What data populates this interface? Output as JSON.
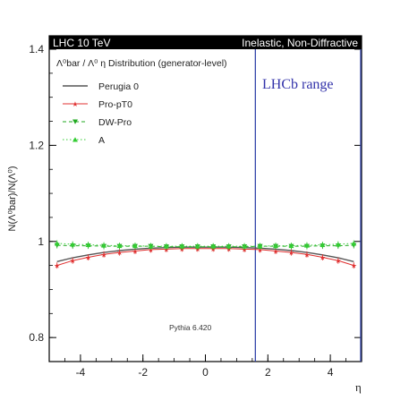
{
  "chart_data": {
    "type": "line",
    "header_left": "LHC 10 TeV",
    "header_right": "Inelastic, Non-Diffractive",
    "inner_title": "Λ⁰bar / Λ⁰ η Distribution (generator-level)",
    "ylabel": "N(Λ⁰bar)/N(Λ⁰)",
    "xlabel": "η",
    "xlim": [
      -5,
      5
    ],
    "ylim": [
      0.75,
      1.4
    ],
    "x_ticks": [
      -4,
      -2,
      0,
      2,
      4
    ],
    "y_ticks": [
      0.8,
      1,
      1.2,
      1.4
    ],
    "annotation": "Pythia 6.420",
    "region_label": "LHCb range",
    "region": [
      1.6,
      5
    ],
    "x": [
      -4.75,
      -4.25,
      -3.75,
      -3.25,
      -2.75,
      -2.25,
      -1.75,
      -1.25,
      -0.75,
      -0.25,
      0.25,
      0.75,
      1.25,
      1.75,
      2.25,
      2.75,
      3.25,
      3.75,
      4.25,
      4.75
    ],
    "series": [
      {
        "name": "Perugia 0",
        "color": "#555555",
        "dash": "solid",
        "marker": "none",
        "values": [
          0.958,
          0.966,
          0.972,
          0.977,
          0.981,
          0.984,
          0.986,
          0.987,
          0.988,
          0.988,
          0.988,
          0.988,
          0.987,
          0.986,
          0.984,
          0.981,
          0.977,
          0.972,
          0.966,
          0.958
        ]
      },
      {
        "name": "Pro-pT0",
        "color": "#e03030",
        "dash": "solid",
        "marker": "star",
        "values": [
          0.95,
          0.96,
          0.967,
          0.973,
          0.977,
          0.98,
          0.983,
          0.984,
          0.985,
          0.985,
          0.985,
          0.985,
          0.984,
          0.983,
          0.98,
          0.977,
          0.973,
          0.967,
          0.96,
          0.95
        ]
      },
      {
        "name": "DW-Pro",
        "color": "#22aa22",
        "dash": "dashed",
        "marker": "triangle-down",
        "values": [
          0.992,
          0.991,
          0.991,
          0.99,
          0.99,
          0.99,
          0.99,
          0.989,
          0.989,
          0.989,
          0.989,
          0.989,
          0.989,
          0.99,
          0.99,
          0.99,
          0.99,
          0.991,
          0.991,
          0.992
        ]
      },
      {
        "name": "A",
        "color": "#33cc33",
        "dash": "dotted",
        "marker": "triangle-up",
        "values": [
          0.996,
          0.994,
          0.993,
          0.992,
          0.991,
          0.991,
          0.99,
          0.99,
          0.99,
          0.99,
          0.99,
          0.99,
          0.99,
          0.99,
          0.991,
          0.991,
          0.992,
          0.993,
          0.994,
          0.996
        ]
      }
    ]
  }
}
